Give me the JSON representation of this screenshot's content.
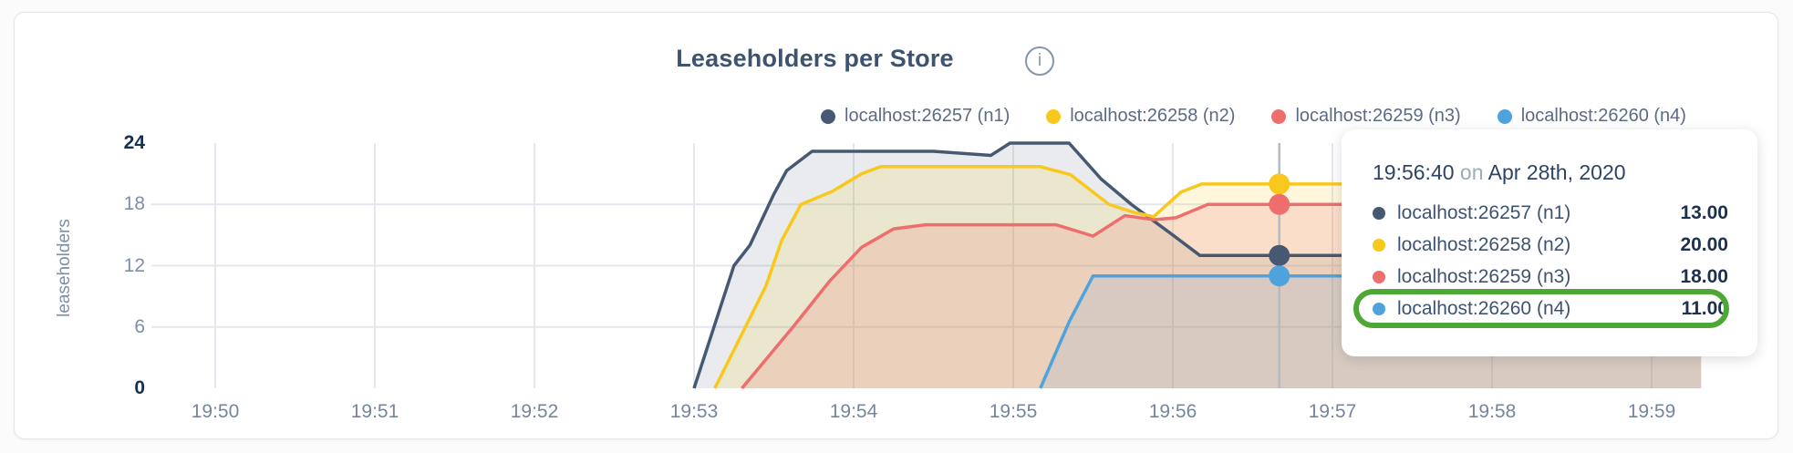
{
  "page": {
    "background": "#fbfbfc"
  },
  "card": {
    "background": "#ffffff",
    "border_color": "#e4e5e9"
  },
  "header": {
    "title": "Leaseholders per Store",
    "info_icon_glyph": "i"
  },
  "legend": {
    "items": [
      {
        "label": "localhost:26257 (n1)",
        "color": "#475872"
      },
      {
        "label": "localhost:26258 (n2)",
        "color": "#f8c81d"
      },
      {
        "label": "localhost:26259 (n3)",
        "color": "#ee6e6e"
      },
      {
        "label": "localhost:26260 (n4)",
        "color": "#4fa3dc"
      }
    ]
  },
  "tooltip": {
    "time": "19:56:40",
    "conjunction": "on",
    "date": "Apr 28th, 2020",
    "rows": [
      {
        "label": "localhost:26257 (n1)",
        "value": "13.00",
        "color": "#475872",
        "highlighted": false
      },
      {
        "label": "localhost:26258 (n2)",
        "value": "20.00",
        "color": "#f8c81d",
        "highlighted": false
      },
      {
        "label": "localhost:26259 (n3)",
        "value": "18.00",
        "color": "#ee6e6e",
        "highlighted": false
      },
      {
        "label": "localhost:26260 (n4)",
        "value": "11.00",
        "color": "#4fa3dc",
        "highlighted": true
      }
    ],
    "highlight_color": "#4ca734"
  },
  "chart_data": {
    "type": "area",
    "title": "Leaseholders per Store",
    "xlabel": "",
    "ylabel": "leaseholders",
    "ylim": [
      0,
      24
    ],
    "y_ticks": [
      0,
      6,
      12,
      18,
      24
    ],
    "y_ticks_emphasized": [
      0,
      24
    ],
    "y_gridlines": [
      6,
      12,
      18
    ],
    "x_ticks": [
      "19:50",
      "19:51",
      "19:52",
      "19:53",
      "19:54",
      "19:55",
      "19:56",
      "19:57",
      "19:58",
      "19:59"
    ],
    "x_unit": "minutes after 19:50",
    "grid": true,
    "legend_position": "top-right",
    "gridline_color": "#e4e8ee",
    "hover_line_color": "#b4bac4",
    "series": [
      {
        "name": "localhost:26257 (n1)",
        "color": "#475872",
        "fill_opacity": 0.12,
        "points": [
          [
            3.0,
            0
          ],
          [
            3.25,
            12
          ],
          [
            3.35,
            14
          ],
          [
            3.5,
            19
          ],
          [
            3.58,
            21.3
          ],
          [
            3.74,
            23.2
          ],
          [
            4.5,
            23.2
          ],
          [
            4.86,
            22.8
          ],
          [
            4.98,
            24
          ],
          [
            5.35,
            24
          ],
          [
            5.55,
            20.5
          ],
          [
            5.74,
            18
          ],
          [
            6.0,
            15
          ],
          [
            6.17,
            13
          ],
          [
            9.31,
            13
          ]
        ]
      },
      {
        "name": "localhost:26258 (n2)",
        "color": "#f8c81d",
        "fill_opacity": 0.15,
        "points": [
          [
            3.13,
            0
          ],
          [
            3.45,
            10
          ],
          [
            3.55,
            14.5
          ],
          [
            3.67,
            18
          ],
          [
            3.87,
            19.3
          ],
          [
            4.05,
            21
          ],
          [
            4.17,
            21.7
          ],
          [
            5.17,
            21.7
          ],
          [
            5.36,
            20.9
          ],
          [
            5.6,
            18
          ],
          [
            5.76,
            17.2
          ],
          [
            5.88,
            16.8
          ],
          [
            6.05,
            19.2
          ],
          [
            6.18,
            20
          ],
          [
            9.31,
            20
          ]
        ]
      },
      {
        "name": "localhost:26259 (n3)",
        "color": "#ee6e6e",
        "fill_opacity": 0.18,
        "points": [
          [
            3.3,
            0
          ],
          [
            3.62,
            6
          ],
          [
            3.85,
            10.5
          ],
          [
            4.05,
            13.8
          ],
          [
            4.25,
            15.6
          ],
          [
            4.45,
            16
          ],
          [
            5.27,
            16
          ],
          [
            5.5,
            14.9
          ],
          [
            5.7,
            16.9
          ],
          [
            5.88,
            16.5
          ],
          [
            6.02,
            16.7
          ],
          [
            6.22,
            18
          ],
          [
            9.31,
            18
          ]
        ]
      },
      {
        "name": "localhost:26260 (n4)",
        "color": "#4fa3dc",
        "fill_opacity": 0.12,
        "points": [
          [
            5.17,
            0
          ],
          [
            5.35,
            6.5
          ],
          [
            5.5,
            11
          ],
          [
            9.31,
            11
          ]
        ]
      }
    ],
    "hover": {
      "t": 6.667,
      "time": "19:56:40",
      "values": [
        13,
        20,
        18,
        11
      ]
    }
  }
}
